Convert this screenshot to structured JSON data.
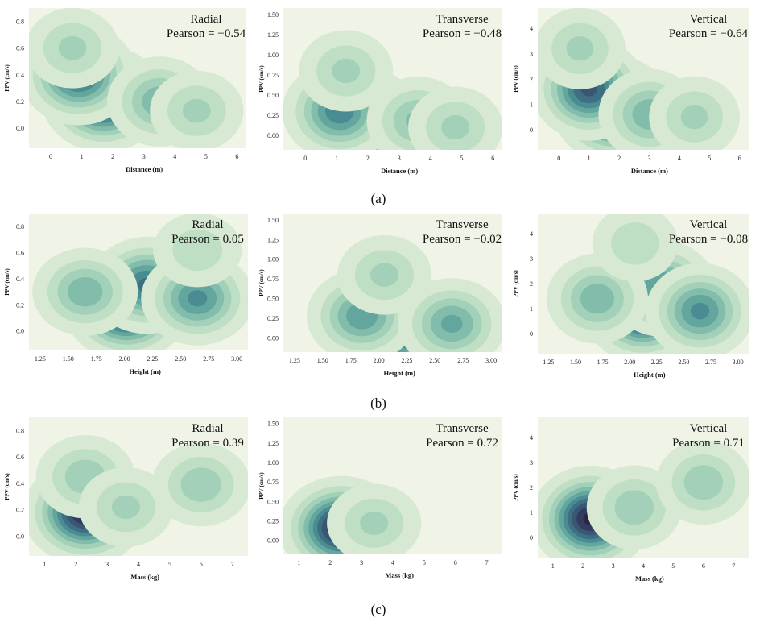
{
  "figure": {
    "captions": [
      "(a)",
      "(b)",
      "(c)"
    ]
  },
  "colors": {
    "background": "#eff4e6",
    "levels": [
      "#d8e9d3",
      "#bfdfc4",
      "#a2d0b9",
      "#82bcab",
      "#63a69e",
      "#4a8c91",
      "#3d7083",
      "#395673",
      "#333c5f",
      "#2b2645"
    ]
  },
  "chart_data": [
    {
      "type": "kde2d",
      "row": "a",
      "title": "Radial",
      "annotation": "Pearson = −0.54",
      "xlabel": "Distance (m)",
      "ylabel": "PPV (cm/s)",
      "xlim": [
        -0.7,
        6.3
      ],
      "ylim": [
        -0.15,
        0.9
      ],
      "xticks": [
        0,
        1,
        2,
        3,
        4,
        5,
        6
      ],
      "yticks": [
        0.0,
        0.2,
        0.4,
        0.6,
        0.8
      ],
      "xtick_labels": [
        "0",
        "1",
        "2",
        "3",
        "4",
        "5",
        "6"
      ],
      "ytick_labels": [
        "0.0",
        "0.2",
        "0.4",
        "0.6",
        "0.8"
      ],
      "density_modes": [
        {
          "x": 1.7,
          "y": 0.22,
          "weight": 1.0
        },
        {
          "x": 0.9,
          "y": 0.4,
          "weight": 0.75
        },
        {
          "x": 0.7,
          "y": 0.6,
          "weight": 0.3
        },
        {
          "x": 3.5,
          "y": 0.2,
          "weight": 0.45
        },
        {
          "x": 4.7,
          "y": 0.13,
          "weight": 0.3
        }
      ]
    },
    {
      "type": "kde2d",
      "row": "a",
      "title": "Transverse",
      "annotation": "Pearson = −0.48",
      "xlabel": "Distance (m)",
      "ylabel": "PPV (cm/s)",
      "xlim": [
        -0.7,
        6.3
      ],
      "ylim": [
        -0.18,
        1.58
      ],
      "xticks": [
        0,
        1,
        2,
        3,
        4,
        5,
        6
      ],
      "yticks": [
        0.0,
        0.25,
        0.5,
        0.75,
        1.0,
        1.25,
        1.5
      ],
      "xtick_labels": [
        "0",
        "1",
        "2",
        "3",
        "4",
        "5",
        "6"
      ],
      "ytick_labels": [
        "0.00",
        "0.25",
        "0.50",
        "0.75",
        "1.00",
        "1.25",
        "1.50"
      ],
      "density_modes": [
        {
          "x": 1.7,
          "y": 0.2,
          "weight": 1.0
        },
        {
          "x": 1.1,
          "y": 0.3,
          "weight": 0.65
        },
        {
          "x": 1.3,
          "y": 0.8,
          "weight": 0.3
        },
        {
          "x": 3.6,
          "y": 0.18,
          "weight": 0.4
        },
        {
          "x": 4.8,
          "y": 0.1,
          "weight": 0.3
        }
      ]
    },
    {
      "type": "kde2d",
      "row": "a",
      "title": "Vertical",
      "annotation": "Pearson = −0.64",
      "xlabel": "Distance (m)",
      "ylabel": "PPV (cm/s)",
      "xlim": [
        -0.7,
        6.3
      ],
      "ylim": [
        -0.8,
        4.8
      ],
      "xticks": [
        0,
        1,
        2,
        3,
        4,
        5,
        6
      ],
      "yticks": [
        0,
        1,
        2,
        3,
        4
      ],
      "xtick_labels": [
        "0",
        "1",
        "2",
        "3",
        "4",
        "5",
        "6"
      ],
      "ytick_labels": [
        "0",
        "1",
        "2",
        "3",
        "4"
      ],
      "density_modes": [
        {
          "x": 1.8,
          "y": 0.8,
          "weight": 1.0
        },
        {
          "x": 1.0,
          "y": 1.6,
          "weight": 0.8
        },
        {
          "x": 0.7,
          "y": 3.2,
          "weight": 0.3
        },
        {
          "x": 3.0,
          "y": 0.6,
          "weight": 0.45
        },
        {
          "x": 4.5,
          "y": 0.5,
          "weight": 0.3
        }
      ]
    },
    {
      "type": "kde2d",
      "row": "b",
      "title": "Radial",
      "annotation": "Pearson = 0.05",
      "xlabel": "Height (m)",
      "ylabel": "PPV (cm/s)",
      "xlim": [
        1.15,
        3.1
      ],
      "ylim": [
        -0.15,
        0.9
      ],
      "xticks": [
        1.25,
        1.5,
        1.75,
        2.0,
        2.25,
        2.5,
        2.75,
        3.0
      ],
      "yticks": [
        0.0,
        0.2,
        0.4,
        0.6,
        0.8
      ],
      "xtick_labels": [
        "1.25",
        "1.50",
        "1.75",
        "2.00",
        "2.25",
        "2.50",
        "2.75",
        "3.00"
      ],
      "ytick_labels": [
        "0.0",
        "0.2",
        "0.4",
        "0.6",
        "0.8"
      ],
      "density_modes": [
        {
          "x": 2.02,
          "y": 0.17,
          "weight": 1.0
        },
        {
          "x": 2.2,
          "y": 0.35,
          "weight": 0.7
        },
        {
          "x": 2.65,
          "y": 0.25,
          "weight": 0.6
        },
        {
          "x": 1.65,
          "y": 0.3,
          "weight": 0.45
        },
        {
          "x": 2.65,
          "y": 0.62,
          "weight": 0.25
        }
      ]
    },
    {
      "type": "kde2d",
      "row": "b",
      "title": "Transverse",
      "annotation": "Pearson = −0.02",
      "xlabel": "Height (m)",
      "ylabel": "PPV (cm/s)",
      "xlim": [
        1.15,
        3.1
      ],
      "ylim": [
        -0.18,
        1.58
      ],
      "xticks": [
        1.25,
        1.5,
        1.75,
        2.0,
        2.25,
        2.5,
        2.75,
        3.0
      ],
      "yticks": [
        0.0,
        0.25,
        0.5,
        0.75,
        1.0,
        1.25,
        1.5
      ],
      "xtick_labels": [
        "1.25",
        "1.50",
        "1.75",
        "2.00",
        "2.25",
        "2.50",
        "2.75",
        "3.00"
      ],
      "ytick_labels": [
        "0.00",
        "0.25",
        "0.50",
        "0.75",
        "1.00",
        "1.25",
        "1.50"
      ],
      "density_modes": [
        {
          "x": 2.2,
          "y": 0.17,
          "weight": 1.0
        },
        {
          "x": 1.85,
          "y": 0.28,
          "weight": 0.55
        },
        {
          "x": 2.65,
          "y": 0.18,
          "weight": 0.5
        },
        {
          "x": 2.05,
          "y": 0.8,
          "weight": 0.3
        }
      ]
    },
    {
      "type": "kde2d",
      "row": "b",
      "title": "Vertical",
      "annotation": "Pearson = −0.08",
      "xlabel": "Height (m)",
      "ylabel": "PPV (cm/s)",
      "xlim": [
        1.15,
        3.1
      ],
      "ylim": [
        -0.8,
        4.8
      ],
      "xticks": [
        1.25,
        1.5,
        1.75,
        2.0,
        2.25,
        2.5,
        2.75,
        3.0
      ],
      "yticks": [
        0,
        1,
        2,
        3,
        4
      ],
      "xtick_labels": [
        "1.25",
        "1.50",
        "1.75",
        "2.00",
        "2.25",
        "2.50",
        "2.75",
        "3.00"
      ],
      "ytick_labels": [
        "0",
        "1",
        "2",
        "3",
        "4"
      ],
      "density_modes": [
        {
          "x": 2.12,
          "y": 0.95,
          "weight": 1.0
        },
        {
          "x": 2.3,
          "y": 1.8,
          "weight": 0.6
        },
        {
          "x": 2.65,
          "y": 0.9,
          "weight": 0.6
        },
        {
          "x": 1.7,
          "y": 1.4,
          "weight": 0.45
        },
        {
          "x": 2.05,
          "y": 3.6,
          "weight": 0.25
        }
      ]
    },
    {
      "type": "kde2d",
      "row": "c",
      "title": "Radial",
      "annotation": "Pearson = 0.39",
      "xlabel": "Mass (kg)",
      "ylabel": "PPV (cm/s)",
      "xlim": [
        0.5,
        7.5
      ],
      "ylim": [
        -0.15,
        0.9
      ],
      "xticks": [
        1,
        2,
        3,
        4,
        5,
        6,
        7
      ],
      "yticks": [
        0.0,
        0.2,
        0.4,
        0.6,
        0.8
      ],
      "xtick_labels": [
        "1",
        "2",
        "3",
        "4",
        "5",
        "6",
        "7"
      ],
      "ytick_labels": [
        "0.0",
        "0.2",
        "0.4",
        "0.6",
        "0.8"
      ],
      "density_modes": [
        {
          "x": 2.3,
          "y": 0.18,
          "weight": 1.0
        },
        {
          "x": 2.3,
          "y": 0.45,
          "weight": 0.35
        },
        {
          "x": 3.6,
          "y": 0.22,
          "weight": 0.3
        },
        {
          "x": 6.0,
          "y": 0.39,
          "weight": 0.35
        }
      ]
    },
    {
      "type": "kde2d",
      "row": "c",
      "title": "Transverse",
      "annotation": "Pearson = 0.72",
      "xlabel": "Mass (kg)",
      "ylabel": "PPV (cm/s)",
      "xlim": [
        0.5,
        7.5
      ],
      "ylim": [
        -0.18,
        1.58
      ],
      "xticks": [
        1,
        2,
        3,
        4,
        5,
        6,
        7
      ],
      "yticks": [
        0.0,
        0.25,
        0.5,
        0.75,
        1.0,
        1.25,
        1.5
      ],
      "xtick_labels": [
        "1",
        "2",
        "3",
        "4",
        "5",
        "6",
        "7"
      ],
      "ytick_labels": [
        "0.00",
        "0.25",
        "0.50",
        "0.75",
        "1.00",
        "1.25",
        "1.50"
      ],
      "density_modes": [
        {
          "x": 2.35,
          "y": 0.16,
          "weight": 1.0
        },
        {
          "x": 3.4,
          "y": 0.22,
          "weight": 0.3
        }
      ]
    },
    {
      "type": "kde2d",
      "row": "c",
      "title": "Vertical",
      "annotation": "Pearson = 0.71",
      "xlabel": "Mass (kg)",
      "ylabel": "PPV (cm/s)",
      "xlim": [
        0.5,
        7.5
      ],
      "ylim": [
        -0.8,
        4.8
      ],
      "xticks": [
        1,
        2,
        3,
        4,
        5,
        6,
        7
      ],
      "yticks": [
        0,
        1,
        2,
        3,
        4
      ],
      "xtick_labels": [
        "1",
        "2",
        "3",
        "4",
        "5",
        "6",
        "7"
      ],
      "ytick_labels": [
        "0",
        "1",
        "2",
        "3",
        "4"
      ],
      "density_modes": [
        {
          "x": 2.25,
          "y": 0.75,
          "weight": 1.0
        },
        {
          "x": 3.7,
          "y": 1.2,
          "weight": 0.35
        },
        {
          "x": 6.0,
          "y": 2.2,
          "weight": 0.35
        }
      ]
    }
  ]
}
